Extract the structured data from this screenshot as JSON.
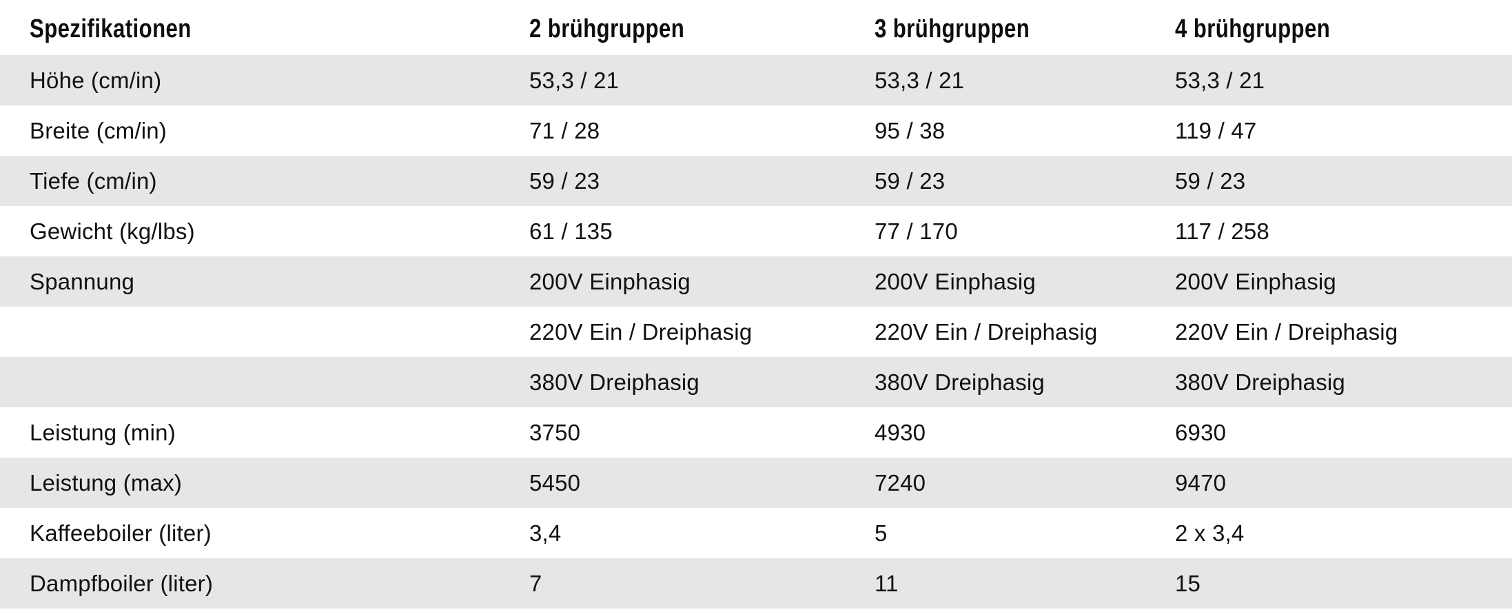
{
  "table": {
    "headers": [
      "Spezifikationen",
      "2 brühgruppen",
      "3 brühgruppen",
      "4 brühgruppen"
    ],
    "rows": [
      {
        "label": "Höhe (cm/in)",
        "values": [
          "53,3  / 21",
          "53,3  / 21",
          "53,3  / 21"
        ]
      },
      {
        "label": "Breite (cm/in)",
        "values": [
          "71  / 28",
          "95 / 38",
          "119 / 47"
        ]
      },
      {
        "label": "Tiefe (cm/in)",
        "values": [
          "59 / 23",
          "59 / 23",
          "59 / 23"
        ]
      },
      {
        "label": "Gewicht (kg/lbs)",
        "values": [
          "61 / 135",
          "77 / 170",
          "117 / 258"
        ]
      },
      {
        "label": "Spannung",
        "values": [
          "200V Einphasig",
          "200V Einphasig",
          "200V Einphasig"
        ]
      },
      {
        "label": "",
        "values": [
          "220V Ein / Dreiphasig",
          "220V Ein / Dreiphasig",
          "220V Ein / Dreiphasig"
        ]
      },
      {
        "label": "",
        "values": [
          "380V Dreiphasig",
          "380V Dreiphasig",
          "380V Dreiphasig"
        ]
      },
      {
        "label": "Leistung (min)",
        "values": [
          "3750",
          "4930",
          "6930"
        ]
      },
      {
        "label": "Leistung (max)",
        "values": [
          "5450",
          "7240",
          "9470"
        ]
      },
      {
        "label": "Kaffeeboiler (liter)",
        "values": [
          "3,4",
          "5",
          "2 x 3,4"
        ]
      },
      {
        "label": "Dampfboiler (liter)",
        "values": [
          "7",
          "11",
          "15"
        ]
      }
    ]
  },
  "colors": {
    "shaded_row": "#e6e6e6",
    "plain_row": "#ffffff",
    "text": "#111111"
  }
}
